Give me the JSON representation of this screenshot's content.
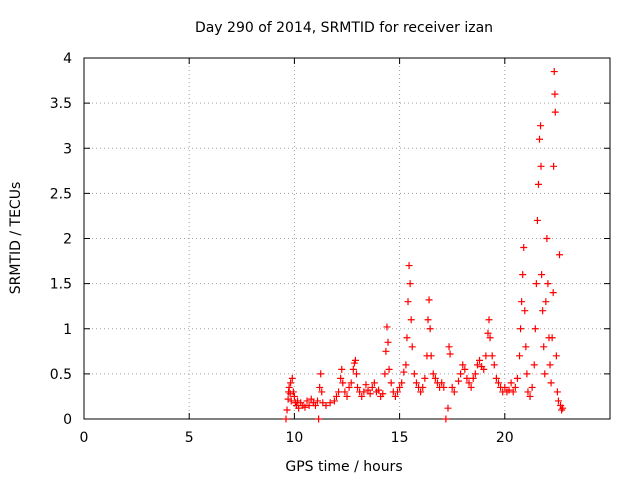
{
  "chart_data": {
    "type": "scatter",
    "title": "Day 290 of 2014, SRMTID for receiver izan",
    "xlabel": "GPS time / hours",
    "ylabel": "SRMTID / TECUs",
    "xlim": [
      0,
      25
    ],
    "ylim": [
      0,
      4
    ],
    "xticks": [
      0,
      5,
      10,
      15,
      20
    ],
    "yticks": [
      0,
      0.5,
      1,
      1.5,
      2,
      2.5,
      3,
      3.5,
      4
    ],
    "xtick_labels": [
      "0",
      "5",
      "10",
      "15",
      "20"
    ],
    "ytick_labels": [
      "0",
      "0.5",
      "1",
      "1.5",
      "2",
      "2.5",
      "3",
      "3.5",
      "4"
    ],
    "grid": true,
    "marker": "+",
    "color": "#ff0000",
    "series": [
      {
        "name": "SRMTID",
        "points": [
          [
            9.6,
            0.0
          ],
          [
            9.65,
            0.1
          ],
          [
            9.7,
            0.22
          ],
          [
            9.72,
            0.3
          ],
          [
            9.75,
            0.35
          ],
          [
            9.8,
            0.28
          ],
          [
            9.82,
            0.4
          ],
          [
            9.85,
            0.2
          ],
          [
            9.9,
            0.45
          ],
          [
            9.95,
            0.3
          ],
          [
            10.0,
            0.25
          ],
          [
            10.05,
            0.18
          ],
          [
            10.1,
            0.15
          ],
          [
            10.15,
            0.2
          ],
          [
            10.2,
            0.12
          ],
          [
            10.3,
            0.18
          ],
          [
            10.4,
            0.15
          ],
          [
            10.5,
            0.13
          ],
          [
            10.6,
            0.2
          ],
          [
            10.7,
            0.15
          ],
          [
            10.8,
            0.22
          ],
          [
            10.9,
            0.18
          ],
          [
            11.0,
            0.15
          ],
          [
            11.1,
            0.2
          ],
          [
            11.15,
            0.0
          ],
          [
            11.2,
            0.35
          ],
          [
            11.25,
            0.5
          ],
          [
            11.3,
            0.3
          ],
          [
            11.35,
            0.18
          ],
          [
            11.5,
            0.15
          ],
          [
            11.7,
            0.18
          ],
          [
            11.9,
            0.2
          ],
          [
            12.0,
            0.25
          ],
          [
            12.1,
            0.3
          ],
          [
            12.2,
            0.45
          ],
          [
            12.25,
            0.55
          ],
          [
            12.3,
            0.4
          ],
          [
            12.4,
            0.3
          ],
          [
            12.5,
            0.25
          ],
          [
            12.6,
            0.35
          ],
          [
            12.7,
            0.4
          ],
          [
            12.8,
            0.55
          ],
          [
            12.85,
            0.62
          ],
          [
            12.9,
            0.65
          ],
          [
            12.95,
            0.5
          ],
          [
            13.0,
            0.35
          ],
          [
            13.1,
            0.3
          ],
          [
            13.2,
            0.25
          ],
          [
            13.3,
            0.3
          ],
          [
            13.4,
            0.38
          ],
          [
            13.5,
            0.32
          ],
          [
            13.6,
            0.28
          ],
          [
            13.7,
            0.35
          ],
          [
            13.8,
            0.4
          ],
          [
            13.9,
            0.3
          ],
          [
            14.0,
            0.32
          ],
          [
            14.1,
            0.25
          ],
          [
            14.2,
            0.28
          ],
          [
            14.3,
            0.5
          ],
          [
            14.35,
            0.75
          ],
          [
            14.4,
            1.02
          ],
          [
            14.45,
            0.85
          ],
          [
            14.5,
            0.55
          ],
          [
            14.6,
            0.4
          ],
          [
            14.7,
            0.3
          ],
          [
            14.8,
            0.25
          ],
          [
            14.9,
            0.3
          ],
          [
            15.0,
            0.35
          ],
          [
            15.1,
            0.4
          ],
          [
            15.2,
            0.52
          ],
          [
            15.3,
            0.6
          ],
          [
            15.35,
            0.9
          ],
          [
            15.4,
            1.3
          ],
          [
            15.45,
            1.7
          ],
          [
            15.5,
            1.5
          ],
          [
            15.55,
            1.1
          ],
          [
            15.6,
            0.8
          ],
          [
            15.7,
            0.5
          ],
          [
            15.8,
            0.4
          ],
          [
            15.9,
            0.35
          ],
          [
            16.0,
            0.3
          ],
          [
            16.1,
            0.35
          ],
          [
            16.2,
            0.45
          ],
          [
            16.3,
            0.7
          ],
          [
            16.35,
            1.1
          ],
          [
            16.4,
            1.32
          ],
          [
            16.45,
            1.0
          ],
          [
            16.5,
            0.7
          ],
          [
            16.6,
            0.5
          ],
          [
            16.7,
            0.45
          ],
          [
            16.8,
            0.4
          ],
          [
            16.9,
            0.35
          ],
          [
            17.0,
            0.4
          ],
          [
            17.1,
            0.35
          ],
          [
            17.2,
            0.0
          ],
          [
            17.3,
            0.12
          ],
          [
            17.35,
            0.8
          ],
          [
            17.4,
            0.72
          ],
          [
            17.5,
            0.35
          ],
          [
            17.6,
            0.3
          ],
          [
            17.8,
            0.42
          ],
          [
            17.9,
            0.5
          ],
          [
            18.0,
            0.6
          ],
          [
            18.1,
            0.55
          ],
          [
            18.2,
            0.45
          ],
          [
            18.3,
            0.4
          ],
          [
            18.4,
            0.35
          ],
          [
            18.5,
            0.45
          ],
          [
            18.6,
            0.5
          ],
          [
            18.7,
            0.6
          ],
          [
            18.8,
            0.65
          ],
          [
            18.9,
            0.58
          ],
          [
            19.0,
            0.55
          ],
          [
            19.1,
            0.7
          ],
          [
            19.2,
            0.95
          ],
          [
            19.25,
            1.1
          ],
          [
            19.3,
            0.9
          ],
          [
            19.4,
            0.7
          ],
          [
            19.5,
            0.6
          ],
          [
            19.6,
            0.45
          ],
          [
            19.7,
            0.4
          ],
          [
            19.8,
            0.35
          ],
          [
            19.9,
            0.3
          ],
          [
            20.0,
            0.35
          ],
          [
            20.1,
            0.3
          ],
          [
            20.2,
            0.32
          ],
          [
            20.3,
            0.4
          ],
          [
            20.4,
            0.3
          ],
          [
            20.5,
            0.35
          ],
          [
            20.6,
            0.45
          ],
          [
            20.7,
            0.7
          ],
          [
            20.75,
            1.0
          ],
          [
            20.8,
            1.3
          ],
          [
            20.85,
            1.6
          ],
          [
            20.9,
            1.9
          ],
          [
            20.95,
            1.2
          ],
          [
            21.0,
            0.8
          ],
          [
            21.05,
            0.5
          ],
          [
            21.1,
            0.3
          ],
          [
            21.2,
            0.25
          ],
          [
            21.3,
            0.35
          ],
          [
            21.4,
            0.6
          ],
          [
            21.45,
            1.0
          ],
          [
            21.5,
            1.5
          ],
          [
            21.55,
            2.2
          ],
          [
            21.6,
            2.6
          ],
          [
            21.65,
            3.1
          ],
          [
            21.7,
            3.25
          ],
          [
            21.72,
            2.8
          ],
          [
            21.75,
            1.6
          ],
          [
            21.8,
            1.2
          ],
          [
            21.85,
            0.8
          ],
          [
            21.9,
            0.5
          ],
          [
            21.95,
            1.3
          ],
          [
            22.0,
            2.0
          ],
          [
            22.05,
            1.5
          ],
          [
            22.1,
            0.9
          ],
          [
            22.15,
            0.6
          ],
          [
            22.2,
            0.4
          ],
          [
            22.25,
            0.9
          ],
          [
            22.3,
            1.4
          ],
          [
            22.32,
            2.8
          ],
          [
            22.35,
            3.85
          ],
          [
            22.38,
            3.6
          ],
          [
            22.4,
            3.4
          ],
          [
            22.45,
            0.7
          ],
          [
            22.5,
            0.3
          ],
          [
            22.55,
            0.2
          ],
          [
            22.6,
            1.82
          ],
          [
            22.65,
            0.15
          ],
          [
            22.7,
            0.1
          ],
          [
            22.75,
            0.12
          ]
        ]
      }
    ]
  }
}
